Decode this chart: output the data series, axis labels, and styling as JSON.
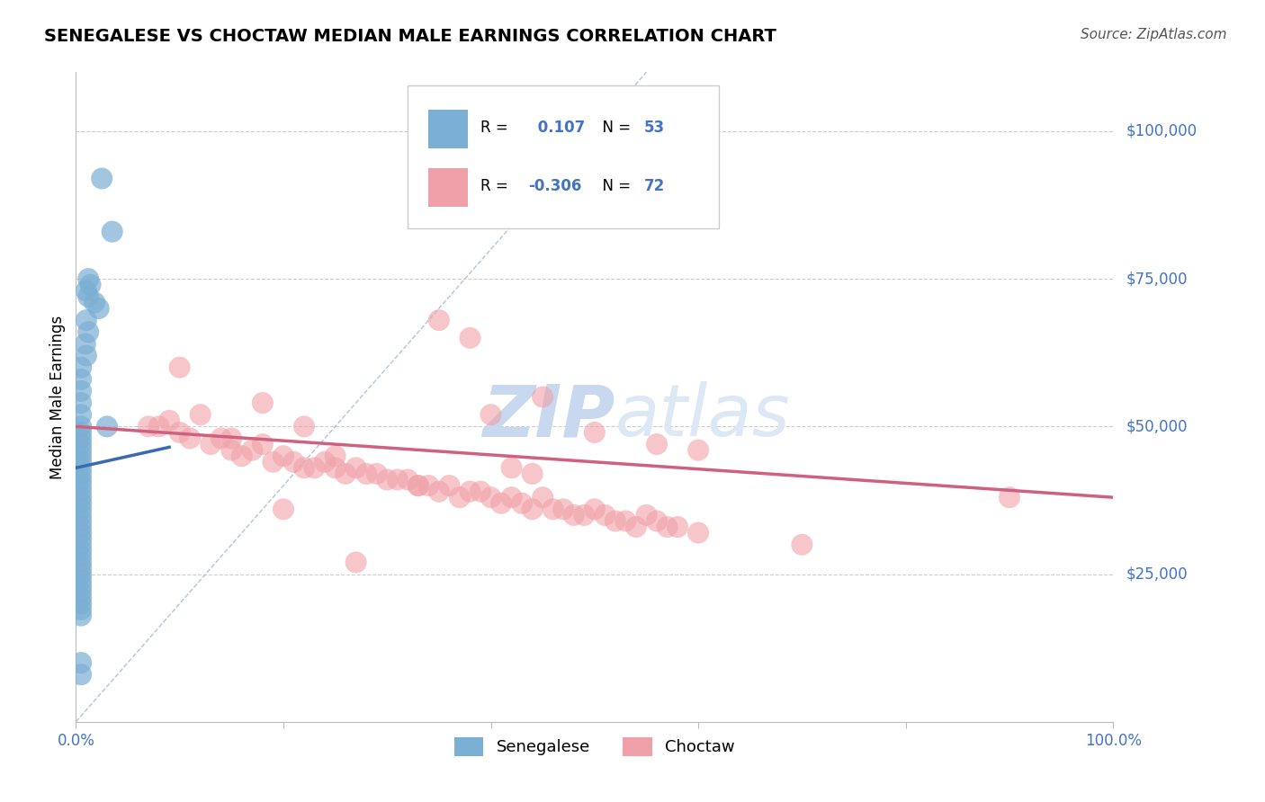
{
  "title": "SENEGALESE VS CHOCTAW MEDIAN MALE EARNINGS CORRELATION CHART",
  "source": "Source: ZipAtlas.com",
  "ylabel": "Median Male Earnings",
  "xlim": [
    0,
    1.0
  ],
  "ylim": [
    0,
    110000
  ],
  "blue_R": 0.107,
  "blue_N": 53,
  "pink_R": -0.306,
  "pink_N": 72,
  "blue_color": "#7bafd4",
  "pink_color": "#f0a0a8",
  "trend_blue": "#3a6ab0",
  "trend_pink": "#d06080",
  "ref_line_color": "#aabbdd",
  "label_color": "#4472c4",
  "watermark_text": "ZIPatlas",
  "blue_scatter_x": [
    0.025,
    0.035,
    0.012,
    0.014,
    0.01,
    0.012,
    0.018,
    0.022,
    0.01,
    0.012,
    0.009,
    0.01,
    0.03,
    0.005,
    0.005,
    0.005,
    0.005,
    0.005,
    0.005,
    0.005,
    0.005,
    0.005,
    0.005,
    0.005,
    0.005,
    0.005,
    0.005,
    0.005,
    0.005,
    0.005,
    0.005,
    0.005,
    0.005,
    0.005,
    0.005,
    0.005,
    0.005,
    0.005,
    0.005,
    0.005,
    0.005,
    0.005,
    0.005,
    0.005,
    0.005,
    0.005,
    0.005,
    0.005,
    0.005,
    0.005,
    0.005,
    0.005,
    0.005
  ],
  "blue_scatter_y": [
    92000,
    83000,
    75000,
    74000,
    73000,
    72000,
    71000,
    70000,
    68000,
    66000,
    64000,
    62000,
    50000,
    60000,
    58000,
    56000,
    54000,
    52000,
    50000,
    49000,
    48000,
    47000,
    46000,
    45000,
    44000,
    43000,
    42000,
    41000,
    40000,
    39000,
    38000,
    37000,
    36000,
    35000,
    34000,
    33000,
    32000,
    31000,
    30000,
    29000,
    28000,
    27000,
    26000,
    25000,
    24000,
    23000,
    22000,
    21000,
    20000,
    19000,
    18000,
    10000,
    8000
  ],
  "pink_scatter_x": [
    0.07,
    0.08,
    0.09,
    0.1,
    0.11,
    0.12,
    0.13,
    0.14,
    0.15,
    0.16,
    0.17,
    0.18,
    0.19,
    0.2,
    0.21,
    0.22,
    0.23,
    0.24,
    0.25,
    0.26,
    0.27,
    0.28,
    0.29,
    0.3,
    0.31,
    0.32,
    0.33,
    0.34,
    0.35,
    0.36,
    0.37,
    0.38,
    0.39,
    0.4,
    0.41,
    0.42,
    0.43,
    0.44,
    0.45,
    0.46,
    0.47,
    0.48,
    0.49,
    0.5,
    0.51,
    0.52,
    0.53,
    0.54,
    0.55,
    0.56,
    0.57,
    0.58,
    0.6,
    0.18,
    0.22,
    0.1,
    0.35,
    0.4,
    0.5,
    0.6,
    0.27,
    0.33,
    0.45,
    0.15,
    0.25,
    0.38,
    0.44,
    0.9,
    0.7,
    0.56,
    0.42,
    0.2
  ],
  "pink_scatter_y": [
    50000,
    50000,
    51000,
    49000,
    48000,
    52000,
    47000,
    48000,
    46000,
    45000,
    46000,
    47000,
    44000,
    45000,
    44000,
    43000,
    43000,
    44000,
    45000,
    42000,
    43000,
    42000,
    42000,
    41000,
    41000,
    41000,
    40000,
    40000,
    39000,
    40000,
    38000,
    39000,
    39000,
    38000,
    37000,
    38000,
    37000,
    36000,
    38000,
    36000,
    36000,
    35000,
    35000,
    36000,
    35000,
    34000,
    34000,
    33000,
    35000,
    34000,
    33000,
    33000,
    32000,
    54000,
    50000,
    60000,
    68000,
    52000,
    49000,
    46000,
    27000,
    40000,
    55000,
    48000,
    43000,
    65000,
    42000,
    38000,
    30000,
    47000,
    43000,
    36000
  ],
  "blue_trend_x0": 0.0,
  "blue_trend_y0": 43000,
  "blue_trend_x1": 0.09,
  "blue_trend_y1": 46500,
  "pink_trend_x0": 0.0,
  "pink_trend_y0": 50000,
  "pink_trend_x1": 1.0,
  "pink_trend_y1": 38000
}
